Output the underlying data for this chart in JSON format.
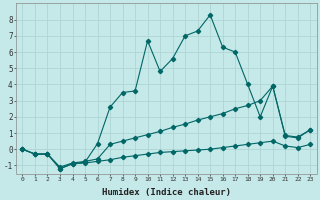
{
  "xlabel": "Humidex (Indice chaleur)",
  "background_color": "#c5e8e8",
  "grid_color": "#aed4d4",
  "line_color": "#006666",
  "xlim": [
    -0.5,
    23.5
  ],
  "ylim": [
    -1.5,
    9.0
  ],
  "xticks": [
    0,
    1,
    2,
    3,
    4,
    5,
    6,
    7,
    8,
    9,
    10,
    11,
    12,
    13,
    14,
    15,
    16,
    17,
    18,
    19,
    20,
    21,
    22,
    23
  ],
  "yticks": [
    -1,
    0,
    1,
    2,
    3,
    4,
    5,
    6,
    7,
    8
  ],
  "s1_x": [
    0,
    1,
    2,
    3,
    4,
    5,
    6,
    7,
    8,
    9,
    10,
    11,
    12,
    13,
    14,
    15,
    16,
    17,
    18,
    19,
    20,
    21,
    22,
    23
  ],
  "s1_y": [
    0,
    -0.3,
    -0.3,
    -1.2,
    -0.9,
    -0.8,
    0.35,
    2.6,
    3.5,
    3.6,
    6.7,
    4.8,
    5.6,
    7.0,
    7.3,
    8.3,
    6.3,
    6.0,
    4.0,
    2.0,
    3.9,
    0.8,
    0.7,
    1.2
  ],
  "s2_x": [
    0,
    1,
    2,
    3,
    4,
    5,
    6,
    7,
    8,
    9,
    10,
    11,
    12,
    13,
    14,
    15,
    16,
    17,
    18,
    19,
    20,
    21,
    22,
    23
  ],
  "s2_y": [
    0,
    -0.3,
    -0.3,
    -1.1,
    -0.85,
    -0.75,
    -0.6,
    0.3,
    0.5,
    0.7,
    0.9,
    1.1,
    1.35,
    1.55,
    1.8,
    2.0,
    2.2,
    2.5,
    2.7,
    3.0,
    3.9,
    0.85,
    0.75,
    1.2
  ],
  "s3_x": [
    0,
    1,
    2,
    3,
    4,
    5,
    6,
    7,
    8,
    9,
    10,
    11,
    12,
    13,
    14,
    15,
    16,
    17,
    18,
    19,
    20,
    21,
    22,
    23
  ],
  "s3_y": [
    0,
    -0.3,
    -0.3,
    -1.2,
    -0.9,
    -0.85,
    -0.75,
    -0.65,
    -0.5,
    -0.4,
    -0.3,
    -0.2,
    -0.15,
    -0.1,
    -0.05,
    0.0,
    0.1,
    0.2,
    0.3,
    0.4,
    0.5,
    0.2,
    0.1,
    0.3
  ]
}
